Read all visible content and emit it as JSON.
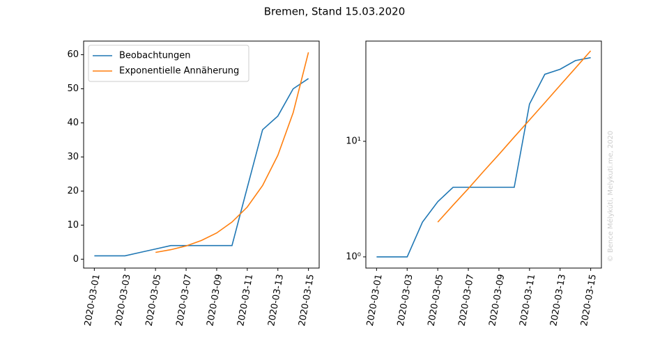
{
  "title": "Bremen, Stand 15.03.2020",
  "watermark": "© Bence Mélykúti, Melykuti.me, 2020",
  "chart_data": [
    {
      "type": "line",
      "categories": [
        "2020-03-01",
        null,
        "2020-03-03",
        null,
        "2020-03-05",
        null,
        "2020-03-07",
        null,
        "2020-03-09",
        null,
        "2020-03-11",
        null,
        "2020-03-13",
        null,
        "2020-03-15"
      ],
      "series": [
        {
          "name": "Beobachtungen",
          "color": "#1f77b4",
          "values": [
            1,
            1,
            1,
            2,
            3,
            4,
            4,
            4,
            4,
            4,
            21,
            38,
            42,
            50,
            53
          ]
        },
        {
          "name": "Exponentielle Annäherung",
          "color": "#ff7f0e",
          "values": [
            null,
            null,
            null,
            null,
            2.0,
            2.8,
            3.9,
            5.5,
            7.7,
            10.9,
            15.3,
            21.6,
            30.5,
            43.0,
            60.7
          ]
        }
      ],
      "ylim": [
        -2.6,
        64
      ],
      "yticks": [
        0,
        10,
        20,
        30,
        40,
        50,
        60
      ],
      "yscale": "linear",
      "legend": "upper left"
    },
    {
      "type": "line",
      "categories": [
        "2020-03-01",
        null,
        "2020-03-03",
        null,
        "2020-03-05",
        null,
        "2020-03-07",
        null,
        "2020-03-09",
        null,
        "2020-03-11",
        null,
        "2020-03-13",
        null,
        "2020-03-15"
      ],
      "series": [
        {
          "color": "#1f77b4",
          "values": [
            1,
            1,
            1,
            2,
            3,
            4,
            4,
            4,
            4,
            4,
            21,
            38,
            42,
            50,
            53
          ]
        },
        {
          "color": "#ff7f0e",
          "values": [
            null,
            null,
            null,
            null,
            2.0,
            2.8,
            3.9,
            5.5,
            7.7,
            10.9,
            15.3,
            21.6,
            30.5,
            43.0,
            60.7
          ]
        }
      ],
      "ylim": [
        0.8,
        73.7
      ],
      "yticks": [
        {
          "value": 1,
          "label": "10⁰"
        },
        {
          "value": 10,
          "label": "10¹"
        }
      ],
      "yscale": "log"
    }
  ]
}
